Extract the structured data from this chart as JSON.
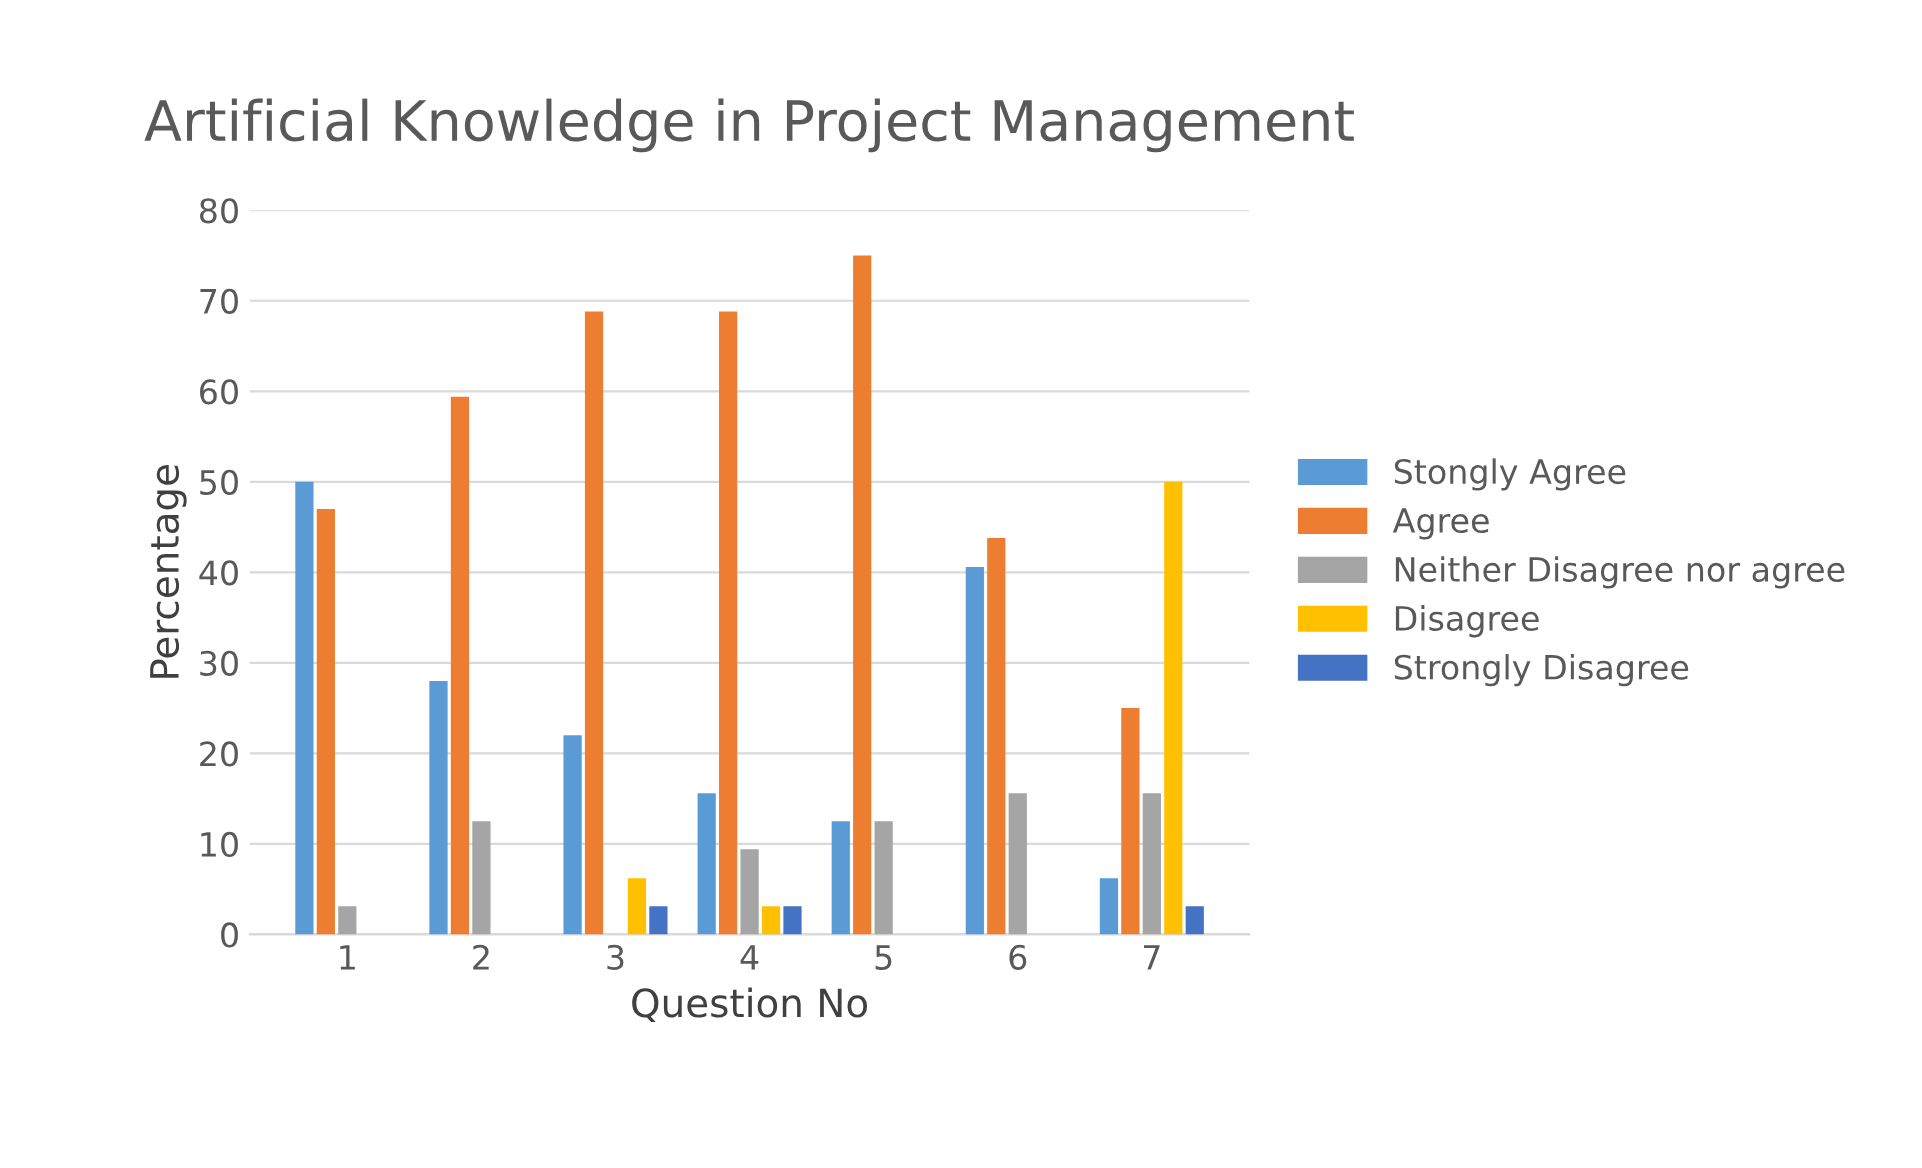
{
  "chart_data": {
    "type": "bar",
    "title": "Artificial Knowledge in Project Management",
    "xlabel": "Question No",
    "ylabel": "Percentage",
    "categories": [
      "1",
      "2",
      "3",
      "4",
      "5",
      "6",
      "7"
    ],
    "series": [
      {
        "name": "Stongly Agree",
        "color": "#5b9bd5",
        "values": [
          50,
          28,
          22,
          15.6,
          12.5,
          40.6,
          6.2
        ]
      },
      {
        "name": "Agree",
        "color": "#ed7d31",
        "values": [
          47,
          59.4,
          68.8,
          68.8,
          75,
          43.8,
          25
        ]
      },
      {
        "name": "Neither Disagree nor agree",
        "color": "#a5a5a5",
        "values": [
          3.1,
          12.5,
          0,
          9.4,
          12.5,
          15.6,
          15.6
        ]
      },
      {
        "name": "Disagree",
        "color": "#ffc000",
        "values": [
          0,
          0,
          6.2,
          3.1,
          0,
          0,
          50
        ]
      },
      {
        "name": "Strongly Disagree",
        "color": "#4472c4",
        "values": [
          0,
          0,
          3.1,
          3.1,
          0,
          0,
          3.1
        ]
      }
    ],
    "ylim": [
      0,
      80
    ],
    "yticks": [
      0,
      10,
      20,
      30,
      40,
      50,
      60,
      70,
      80
    ],
    "grid": "y",
    "legend": "right"
  }
}
